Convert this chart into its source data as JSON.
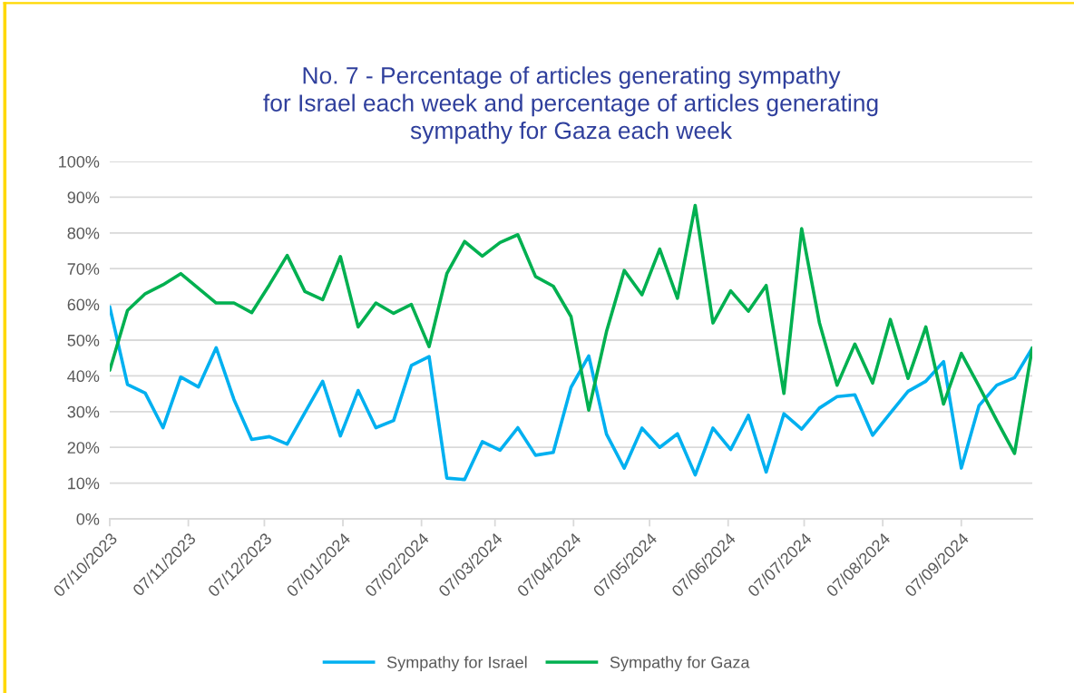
{
  "chart_data": {
    "type": "line",
    "title": "No. 7 - Percentage of articles generating sympathy\nfor Israel each week and percentage of articles generating\nsympathy for Gaza each week",
    "x": [
      "2023-10-07",
      "2023-10-14",
      "2023-10-21",
      "2023-10-28",
      "2023-11-04",
      "2023-11-11",
      "2023-11-18",
      "2023-11-25",
      "2023-12-02",
      "2023-12-09",
      "2023-12-16",
      "2023-12-23",
      "2023-12-30",
      "2024-01-06",
      "2024-01-13",
      "2024-01-20",
      "2024-01-27",
      "2024-02-03",
      "2024-02-10",
      "2024-02-17",
      "2024-02-24",
      "2024-03-02",
      "2024-03-09",
      "2024-03-16",
      "2024-03-23",
      "2024-03-30",
      "2024-04-06",
      "2024-04-13",
      "2024-04-20",
      "2024-04-27",
      "2024-05-04",
      "2024-05-11",
      "2024-05-18",
      "2024-05-25",
      "2024-06-01",
      "2024-06-08",
      "2024-06-15",
      "2024-06-22",
      "2024-06-29",
      "2024-07-06",
      "2024-07-13",
      "2024-07-20",
      "2024-07-27",
      "2024-08-03",
      "2024-08-10",
      "2024-08-17",
      "2024-08-24",
      "2024-08-31",
      "2024-09-07",
      "2024-09-14",
      "2024-09-21",
      "2024-09-28",
      "2024-10-05"
    ],
    "series": [
      {
        "name": "Sympathy for Israel",
        "color": "#00b0f0",
        "values": [
          59.3,
          37.6,
          35.2,
          25.5,
          39.7,
          36.9,
          47.9,
          33.4,
          22.2,
          23.0,
          20.9,
          29.7,
          38.5,
          23.2,
          35.9,
          25.5,
          27.5,
          42.9,
          45.4,
          11.4,
          11.0,
          21.6,
          19.2,
          25.5,
          17.8,
          18.6,
          36.8,
          45.6,
          23.7,
          14.2,
          25.4,
          20.0,
          23.8,
          12.3,
          25.4,
          19.4,
          29.0,
          13.1,
          29.4,
          25.1,
          31.0,
          34.2,
          34.7,
          23.4,
          29.6,
          35.7,
          38.5,
          44.0,
          14.2,
          31.7,
          37.4,
          39.5,
          47.8
        ]
      },
      {
        "name": "Sympathy for Gaza",
        "color": "#00b050",
        "values": [
          41.6,
          58.3,
          63.0,
          65.5,
          68.6,
          64.5,
          60.4,
          60.4,
          57.7,
          65.5,
          73.7,
          63.6,
          61.3,
          73.4,
          53.7,
          60.4,
          57.5,
          60.0,
          48.2,
          68.6,
          77.6,
          73.5,
          77.3,
          79.5,
          67.8,
          65.1,
          56.6,
          30.4,
          52.4,
          69.5,
          62.7,
          75.5,
          61.7,
          87.7,
          54.8,
          63.8,
          58.1,
          65.3,
          35.1,
          81.2,
          54.9,
          37.4,
          48.9,
          38.0,
          55.8,
          39.3,
          53.7,
          32.1,
          46.3,
          37.1,
          27.5,
          18.3,
          47.8
        ]
      }
    ],
    "xlim": [
      "2023-10-07",
      "2024-10-05"
    ],
    "xticks": [
      {
        "value": "2023-10-07",
        "label": "07/10/2023"
      },
      {
        "value": "2023-11-07",
        "label": "07/11/2023"
      },
      {
        "value": "2023-12-07",
        "label": "07/12/2023"
      },
      {
        "value": "2024-01-07",
        "label": "07/01/2024"
      },
      {
        "value": "2024-02-07",
        "label": "07/02/2024"
      },
      {
        "value": "2024-03-07",
        "label": "07/03/2024"
      },
      {
        "value": "2024-04-07",
        "label": "07/04/2024"
      },
      {
        "value": "2024-05-07",
        "label": "07/05/2024"
      },
      {
        "value": "2024-06-07",
        "label": "07/06/2024"
      },
      {
        "value": "2024-07-07",
        "label": "07/07/2024"
      },
      {
        "value": "2024-08-07",
        "label": "07/08/2024"
      },
      {
        "value": "2024-09-07",
        "label": "07/09/2024"
      }
    ],
    "ylim": [
      0,
      100
    ],
    "yticks": [
      {
        "value": 0,
        "label": "0%"
      },
      {
        "value": 10,
        "label": "10%"
      },
      {
        "value": 20,
        "label": "20%"
      },
      {
        "value": 30,
        "label": "30%"
      },
      {
        "value": 40,
        "label": "40%"
      },
      {
        "value": 50,
        "label": "50%"
      },
      {
        "value": 60,
        "label": "60%"
      },
      {
        "value": 70,
        "label": "70%"
      },
      {
        "value": 80,
        "label": "80%"
      },
      {
        "value": 90,
        "label": "90%"
      },
      {
        "value": 100,
        "label": "100%"
      }
    ],
    "grid": "y",
    "legend": "bottom",
    "marker": "none",
    "line_style": "solid"
  }
}
